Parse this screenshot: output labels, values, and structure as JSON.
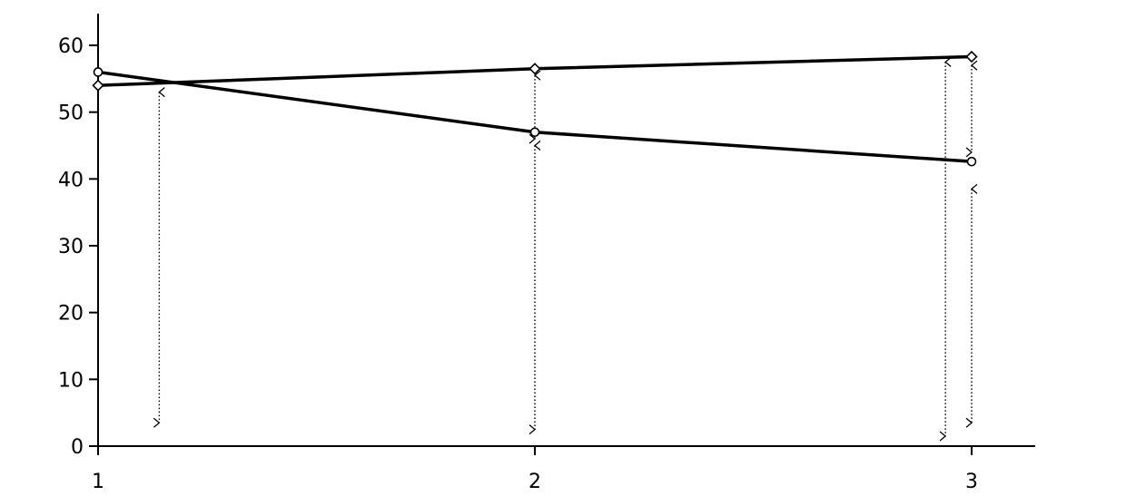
{
  "chart_data": {
    "type": "line",
    "x": [
      1,
      2,
      3
    ],
    "x_tick_labels": [
      "1",
      "2",
      "3"
    ],
    "y_tick_labels": [
      "0",
      "10",
      "20",
      "30",
      "40",
      "50",
      "60"
    ],
    "ylim": [
      0,
      60
    ],
    "grid": false,
    "series": [
      {
        "marker": "diamond",
        "values": [
          54,
          56.5,
          58.3
        ]
      },
      {
        "marker": "circle",
        "values": [
          56,
          47,
          42.6
        ]
      }
    ],
    "annotations": [
      {
        "type": "double-arrow",
        "x": 1.14,
        "y_from": 3.5,
        "y_to": 53
      },
      {
        "type": "double-arrow",
        "x": 2.0,
        "y_from": 46,
        "y_to": 55.5
      },
      {
        "type": "double-arrow",
        "x": 2.0,
        "y_from": 2.5,
        "y_to": 45
      },
      {
        "type": "double-arrow",
        "x": 2.94,
        "y_from": 1.5,
        "y_to": 57.5
      },
      {
        "type": "double-arrow",
        "x": 3.0,
        "y_from": 44,
        "y_to": 57
      },
      {
        "type": "double-arrow",
        "x": 3.0,
        "y_from": 3.5,
        "y_to": 38.5
      }
    ],
    "colors": {
      "line": "#000000",
      "marker_fill": "#ffffff"
    }
  }
}
